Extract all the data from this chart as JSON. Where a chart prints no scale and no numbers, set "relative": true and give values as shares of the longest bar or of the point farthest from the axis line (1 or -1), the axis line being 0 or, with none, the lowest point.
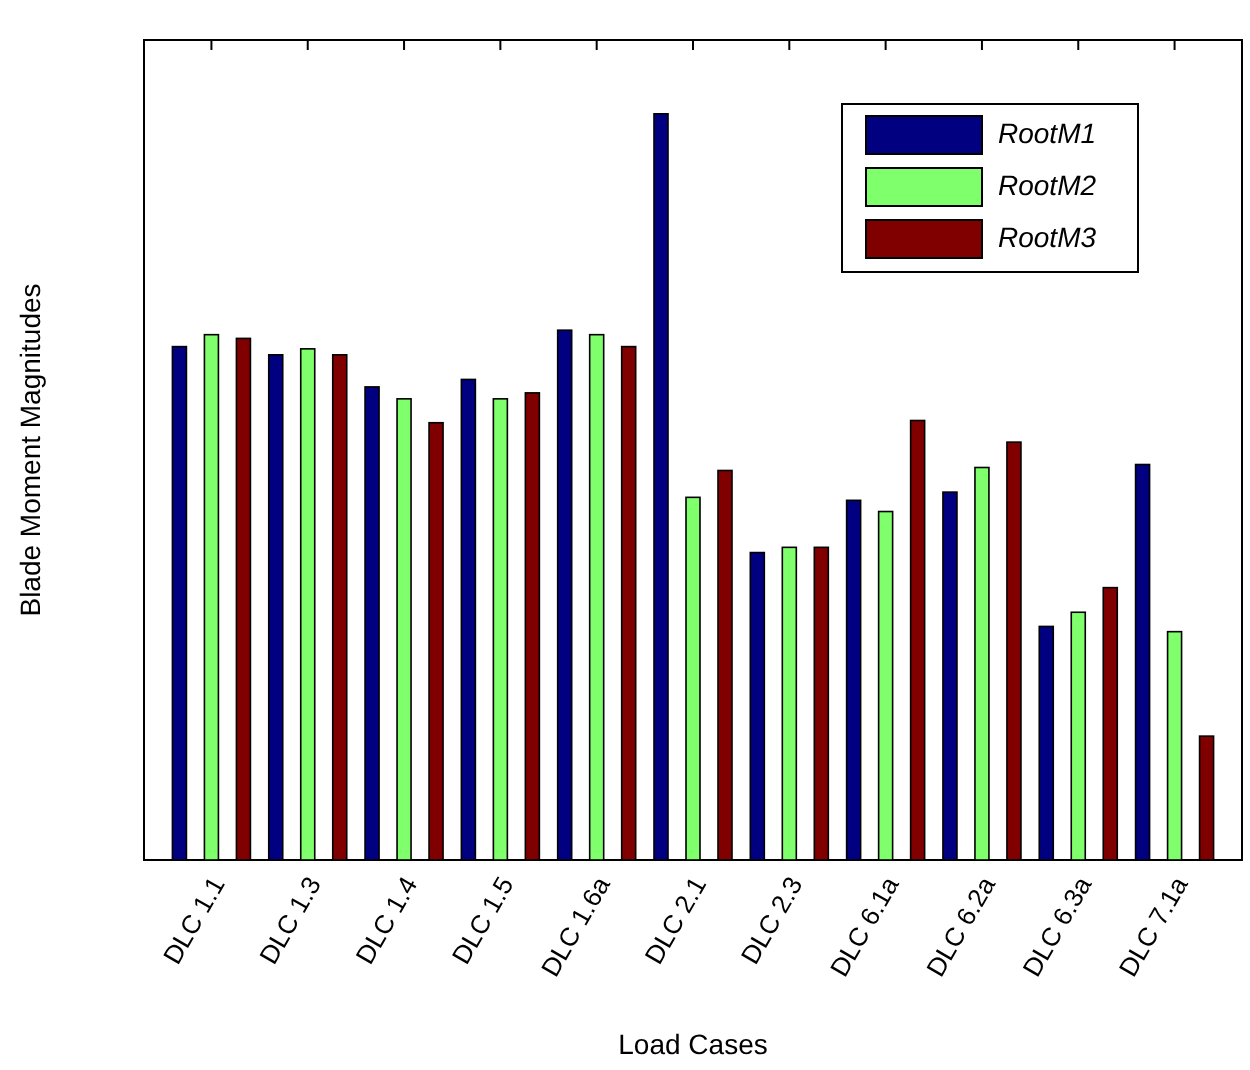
{
  "chart_data": {
    "type": "bar",
    "relative": true,
    "xlabel": "Load Cases",
    "ylabel": "Blade Moment Magnitudes",
    "categories": [
      "DLC 1.1",
      "DLC 1.3",
      "DLC 1.4",
      "DLC 1.5",
      "DLC 1.6a",
      "DLC 2.1",
      "DLC 2.3",
      "DLC 6.1a",
      "DLC 6.2a",
      "DLC 6.3a",
      "DLC 7.1a"
    ],
    "series": [
      {
        "name": "RootM1",
        "color": "#000080",
        "values": [
          0.688,
          0.677,
          0.634,
          0.644,
          0.71,
          1,
          0.412,
          0.482,
          0.493,
          0.313,
          0.53
        ]
      },
      {
        "name": "RootM2",
        "color": "#80ff6c",
        "values": [
          0.704,
          0.685,
          0.618,
          0.618,
          0.704,
          0.486,
          0.419,
          0.467,
          0.526,
          0.332,
          0.306
        ]
      },
      {
        "name": "RootM3",
        "color": "#800000",
        "values": [
          0.699,
          0.677,
          0.586,
          0.626,
          0.688,
          0.522,
          0.419,
          0.589,
          0.56,
          0.365,
          0.166
        ]
      }
    ],
    "legend": "top right"
  }
}
